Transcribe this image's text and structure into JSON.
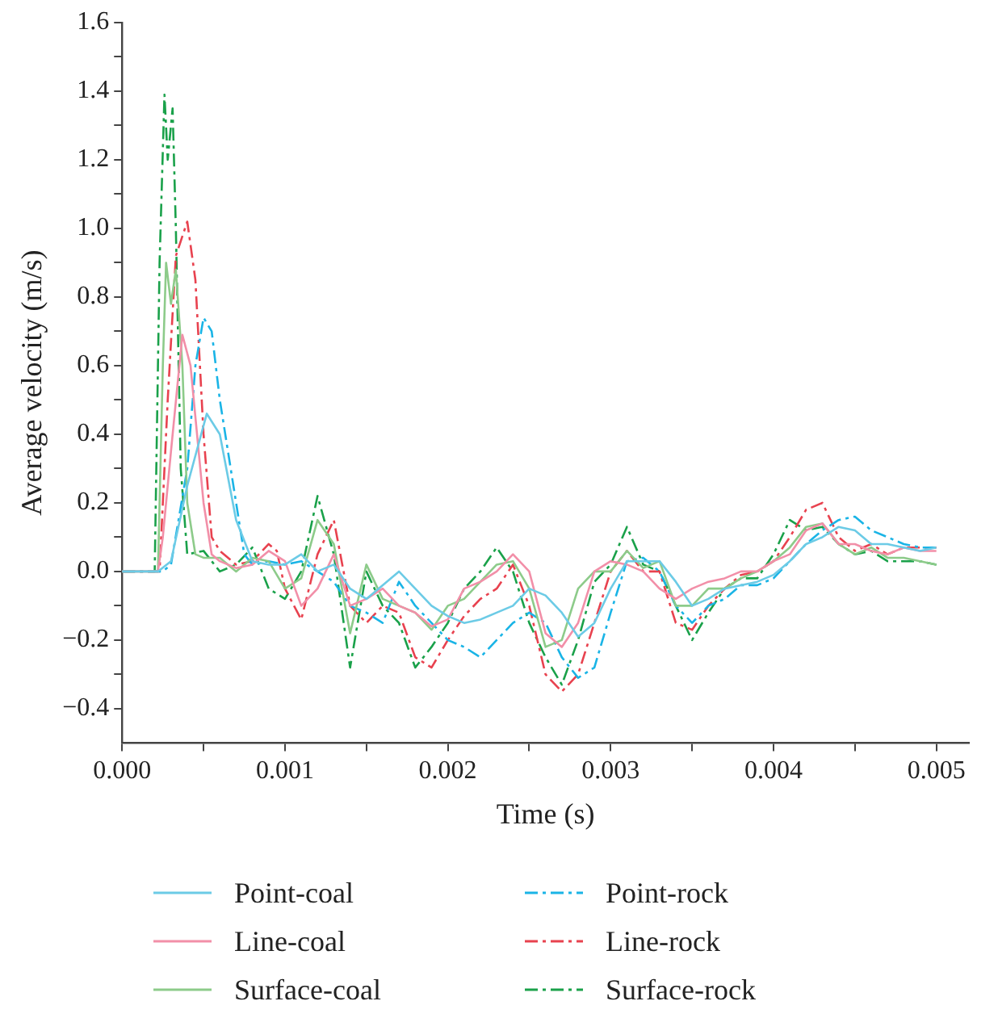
{
  "chart_data": {
    "type": "line",
    "xlabel": "Time (s)",
    "ylabel": "Average velocity (m/s)",
    "xlim": [
      0,
      0.0052
    ],
    "ylim": [
      -0.5,
      1.6
    ],
    "xticks": [
      {
        "value": 0,
        "label": "0.000"
      },
      {
        "value": 0.0005,
        "label": null
      },
      {
        "value": 0.001,
        "label": "0.001"
      },
      {
        "value": 0.0015,
        "label": null
      },
      {
        "value": 0.002,
        "label": "0.002"
      },
      {
        "value": 0.0025,
        "label": null
      },
      {
        "value": 0.003,
        "label": "0.003"
      },
      {
        "value": 0.0035,
        "label": null
      },
      {
        "value": 0.004,
        "label": "0.004"
      },
      {
        "value": 0.0045,
        "label": null
      },
      {
        "value": 0.005,
        "label": "0.005"
      }
    ],
    "yticks": [
      {
        "value": -0.4,
        "label": "−0.4"
      },
      {
        "value": -0.3,
        "label": null
      },
      {
        "value": -0.2,
        "label": "−0.2"
      },
      {
        "value": -0.1,
        "label": null
      },
      {
        "value": 0,
        "label": "0.0"
      },
      {
        "value": 0.1,
        "label": null
      },
      {
        "value": 0.2,
        "label": "0.2"
      },
      {
        "value": 0.3,
        "label": null
      },
      {
        "value": 0.4,
        "label": "0.4"
      },
      {
        "value": 0.5,
        "label": null
      },
      {
        "value": 0.6,
        "label": "0.6"
      },
      {
        "value": 0.7,
        "label": null
      },
      {
        "value": 0.8,
        "label": "0.8"
      },
      {
        "value": 0.9,
        "label": null
      },
      {
        "value": 1.0,
        "label": "1.0"
      },
      {
        "value": 1.1,
        "label": null
      },
      {
        "value": 1.2,
        "label": "1.2"
      },
      {
        "value": 1.3,
        "label": null
      },
      {
        "value": 1.4,
        "label": "1.4"
      },
      {
        "value": 1.5,
        "label": null
      },
      {
        "value": 1.6,
        "label": "1.6"
      }
    ],
    "legend": "bottom",
    "marker": "none",
    "series": [
      {
        "name": "Point-coal",
        "color": "#6ccbe6",
        "line_style": "solid",
        "x": [
          0,
          0.00022,
          0.0003,
          0.0004,
          0.00052,
          0.0006,
          0.0007,
          0.0008,
          0.0009,
          0.001,
          0.0011,
          0.0012,
          0.0013,
          0.0014,
          0.0015,
          0.0017,
          0.0018,
          0.0019,
          0.002,
          0.0021,
          0.0022,
          0.0023,
          0.0024,
          0.0025,
          0.0026,
          0.0027,
          0.0028,
          0.0029,
          0.003,
          0.0031,
          0.0032,
          0.0033,
          0.0034,
          0.0035,
          0.0036,
          0.0037,
          0.0038,
          0.0039,
          0.004,
          0.0041,
          0.0042,
          0.0043,
          0.0044,
          0.0045,
          0.0046,
          0.0047,
          0.0048,
          0.0049,
          0.005
        ],
        "values": [
          0,
          0,
          0.03,
          0.25,
          0.46,
          0.4,
          0.15,
          0.03,
          0.02,
          0.02,
          0.05,
          0.0,
          0.02,
          -0.05,
          -0.08,
          0.0,
          -0.05,
          -0.1,
          -0.13,
          -0.15,
          -0.14,
          -0.12,
          -0.1,
          -0.05,
          -0.07,
          -0.12,
          -0.19,
          -0.15,
          -0.05,
          0.03,
          0.03,
          0.03,
          -0.03,
          -0.1,
          -0.08,
          -0.05,
          -0.04,
          -0.03,
          -0.01,
          0.03,
          0.08,
          0.1,
          0.13,
          0.12,
          0.08,
          0.08,
          0.07,
          0.06,
          0.07
        ]
      },
      {
        "name": "Line-coal",
        "color": "#f28fa8",
        "line_style": "solid",
        "x": [
          0,
          0.00022,
          0.00025,
          0.0003,
          0.00037,
          0.00042,
          0.0005,
          0.00055,
          0.0006,
          0.0007,
          0.0008,
          0.0009,
          0.001,
          0.0011,
          0.0012,
          0.0013,
          0.0014,
          0.0015,
          0.0016,
          0.0017,
          0.0018,
          0.0019,
          0.002,
          0.0021,
          0.0022,
          0.0023,
          0.0024,
          0.0025,
          0.0026,
          0.0027,
          0.0028,
          0.0029,
          0.003,
          0.0031,
          0.0032,
          0.0033,
          0.0034,
          0.0035,
          0.0036,
          0.0037,
          0.0038,
          0.0039,
          0.004,
          0.0041,
          0.0042,
          0.0043,
          0.0044,
          0.0045,
          0.0046,
          0.0047,
          0.0048,
          0.0049,
          0.005
        ],
        "values": [
          0,
          0,
          0.1,
          0.35,
          0.69,
          0.6,
          0.2,
          0.05,
          0.03,
          0.01,
          0.02,
          0.06,
          0.03,
          -0.1,
          -0.05,
          0.05,
          -0.1,
          -0.08,
          -0.05,
          -0.1,
          -0.12,
          -0.16,
          -0.14,
          -0.05,
          -0.03,
          0.0,
          0.05,
          0.0,
          -0.18,
          -0.22,
          -0.15,
          0.0,
          0.03,
          0.02,
          0.0,
          -0.05,
          -0.08,
          -0.05,
          -0.03,
          -0.02,
          0.0,
          0.0,
          0.03,
          0.05,
          0.12,
          0.14,
          0.08,
          0.08,
          0.06,
          0.05,
          0.07,
          0.06,
          0.06
        ]
      },
      {
        "name": "Surface-coal",
        "color": "#8dcb8a",
        "line_style": "solid",
        "x": [
          0,
          0.00022,
          0.00025,
          0.00027,
          0.0003,
          0.00033,
          0.00037,
          0.0004,
          0.00045,
          0.0005,
          0.0006,
          0.0007,
          0.0008,
          0.0009,
          0.001,
          0.0011,
          0.0012,
          0.0013,
          0.0014,
          0.0015,
          0.0016,
          0.0017,
          0.0018,
          0.0019,
          0.002,
          0.0021,
          0.0022,
          0.0023,
          0.0024,
          0.0025,
          0.0026,
          0.0027,
          0.0028,
          0.0029,
          0.003,
          0.0031,
          0.0032,
          0.0033,
          0.0034,
          0.0035,
          0.0036,
          0.0037,
          0.0038,
          0.0039,
          0.004,
          0.0041,
          0.0042,
          0.0043,
          0.0044,
          0.0045,
          0.0046,
          0.0047,
          0.0048,
          0.0049,
          0.005
        ],
        "values": [
          0,
          0,
          0.6,
          0.9,
          0.78,
          0.88,
          0.6,
          0.2,
          0.05,
          0.04,
          0.04,
          0.0,
          0.04,
          0.03,
          -0.05,
          -0.02,
          0.15,
          0.08,
          -0.18,
          0.02,
          -0.08,
          -0.1,
          -0.12,
          -0.17,
          -0.1,
          -0.08,
          -0.03,
          0.02,
          0.03,
          -0.05,
          -0.22,
          -0.2,
          -0.05,
          0.0,
          0.0,
          0.06,
          0.01,
          0.03,
          -0.1,
          -0.1,
          -0.05,
          -0.05,
          -0.02,
          0.0,
          0.03,
          0.07,
          0.13,
          0.14,
          0.08,
          0.05,
          0.07,
          0.04,
          0.04,
          0.03,
          0.02
        ]
      },
      {
        "name": "Point-rock",
        "color": "#1ab4e6",
        "line_style": "dashdot",
        "x": [
          0,
          0.00025,
          0.0003,
          0.0004,
          0.00045,
          0.0005,
          0.00055,
          0.0006,
          0.0007,
          0.00075,
          0.0008,
          0.0009,
          0.001,
          0.0011,
          0.0012,
          0.0013,
          0.0014,
          0.0015,
          0.0016,
          0.0017,
          0.0018,
          0.0019,
          0.002,
          0.0021,
          0.0022,
          0.0023,
          0.0024,
          0.0025,
          0.0026,
          0.0027,
          0.0028,
          0.0029,
          0.003,
          0.0031,
          0.0032,
          0.0033,
          0.0034,
          0.0035,
          0.0036,
          0.0037,
          0.0038,
          0.0039,
          0.004,
          0.0041,
          0.0042,
          0.0043,
          0.0044,
          0.0045,
          0.0046,
          0.0047,
          0.0048,
          0.0049,
          0.005
        ],
        "values": [
          0,
          0,
          0.02,
          0.3,
          0.6,
          0.74,
          0.7,
          0.5,
          0.2,
          0.05,
          0.02,
          0.03,
          0.02,
          0.03,
          0.0,
          -0.03,
          -0.1,
          -0.12,
          -0.15,
          -0.03,
          -0.1,
          -0.15,
          -0.2,
          -0.22,
          -0.25,
          -0.2,
          -0.15,
          -0.12,
          -0.15,
          -0.25,
          -0.31,
          -0.28,
          -0.12,
          0.03,
          0.04,
          0.0,
          -0.1,
          -0.15,
          -0.1,
          -0.08,
          -0.04,
          -0.04,
          -0.02,
          0.03,
          0.08,
          0.12,
          0.15,
          0.16,
          0.12,
          0.1,
          0.08,
          0.07,
          0.07
        ]
      },
      {
        "name": "Line-rock",
        "color": "#e8424f",
        "line_style": "dashdot",
        "x": [
          0,
          0.00023,
          0.00028,
          0.00033,
          0.0004,
          0.00045,
          0.0005,
          0.00055,
          0.0006,
          0.0007,
          0.0008,
          0.0009,
          0.00095,
          0.001,
          0.0011,
          0.0012,
          0.0013,
          0.0014,
          0.0015,
          0.0016,
          0.0017,
          0.0018,
          0.0019,
          0.002,
          0.0021,
          0.0022,
          0.0023,
          0.0024,
          0.0025,
          0.0026,
          0.0027,
          0.0028,
          0.0029,
          0.003,
          0.0031,
          0.0032,
          0.0033,
          0.0034,
          0.0035,
          0.0036,
          0.0037,
          0.0038,
          0.0039,
          0.004,
          0.0041,
          0.0042,
          0.0043,
          0.0044,
          0.0045,
          0.0046,
          0.0047,
          0.0048,
          0.0049,
          0.005
        ],
        "values": [
          0,
          0,
          0.5,
          0.92,
          1.02,
          0.85,
          0.4,
          0.1,
          0.06,
          0.02,
          0.03,
          0.08,
          0.06,
          -0.05,
          -0.14,
          0.05,
          0.15,
          -0.1,
          -0.15,
          -0.1,
          -0.12,
          -0.25,
          -0.28,
          -0.2,
          -0.13,
          -0.08,
          -0.05,
          0.02,
          -0.1,
          -0.3,
          -0.35,
          -0.3,
          -0.15,
          0.0,
          0.06,
          0.0,
          0.0,
          -0.15,
          -0.17,
          -0.1,
          -0.05,
          -0.01,
          0.0,
          0.03,
          0.1,
          0.18,
          0.2,
          0.1,
          0.06,
          0.08,
          0.05,
          0.07,
          0.07,
          0.07
        ]
      },
      {
        "name": "Surface-rock",
        "color": "#1aa14a",
        "line_style": "dashdot",
        "x": [
          0,
          0.0002,
          0.00023,
          0.00026,
          0.00028,
          0.00031,
          0.00033,
          0.00036,
          0.0004,
          0.0005,
          0.0006,
          0.0007,
          0.0008,
          0.0009,
          0.001,
          0.0011,
          0.0012,
          0.0013,
          0.0014,
          0.0015,
          0.0016,
          0.0017,
          0.0018,
          0.0019,
          0.002,
          0.0021,
          0.0022,
          0.0023,
          0.0024,
          0.0025,
          0.0026,
          0.0027,
          0.0028,
          0.0029,
          0.003,
          0.0031,
          0.0032,
          0.0033,
          0.0034,
          0.0035,
          0.0036,
          0.0037,
          0.0038,
          0.0039,
          0.004,
          0.0041,
          0.0042,
          0.0043,
          0.0044,
          0.0045,
          0.0046,
          0.0047,
          0.0048,
          0.0049,
          0.005
        ],
        "values": [
          0,
          0,
          0.9,
          1.39,
          1.2,
          1.35,
          1.0,
          0.3,
          0.05,
          0.06,
          0.0,
          0.02,
          0.07,
          -0.05,
          -0.08,
          0.0,
          0.22,
          0.05,
          -0.28,
          0.0,
          -0.1,
          -0.15,
          -0.28,
          -0.22,
          -0.15,
          -0.05,
          0.0,
          0.07,
          0.0,
          -0.15,
          -0.25,
          -0.33,
          -0.2,
          -0.03,
          0.02,
          0.13,
          0.02,
          0.0,
          -0.1,
          -0.2,
          -0.12,
          -0.05,
          -0.02,
          -0.02,
          0.05,
          0.15,
          0.12,
          0.13,
          0.08,
          0.05,
          0.06,
          0.03,
          0.03,
          0.03,
          0.02
        ]
      }
    ]
  }
}
